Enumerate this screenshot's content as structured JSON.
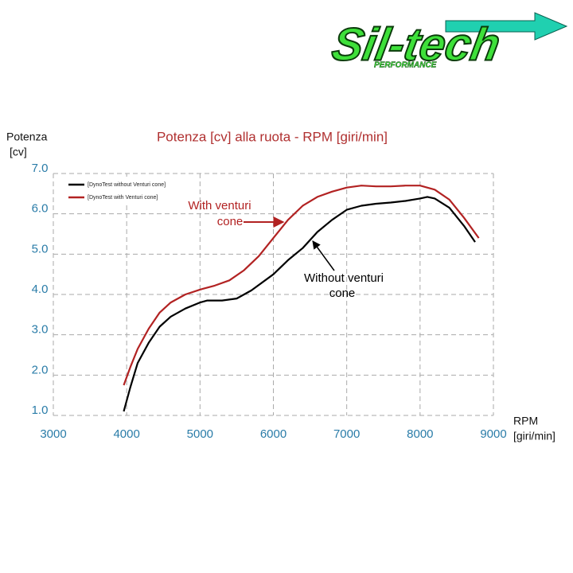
{
  "logo": {
    "text": "Sil-tech",
    "subtext": "PERFORMANCE"
  },
  "chart_data": {
    "type": "line",
    "title": "Potenza [cv] alla ruota - RPM [giri/min]",
    "y_label": [
      "Potenza",
      "[cv]"
    ],
    "x_label": [
      "RPM",
      "[giri/min]"
    ],
    "xlim": [
      3000,
      9000
    ],
    "xticks": [
      3000,
      4000,
      5000,
      6000,
      7000,
      8000,
      9000
    ],
    "ylim": [
      1,
      7
    ],
    "yticks": [
      {
        "value": 1,
        "label": "1.0"
      },
      {
        "value": 2,
        "label": "2.0"
      },
      {
        "value": 3,
        "label": "3.0"
      },
      {
        "value": 4,
        "label": "4.0"
      },
      {
        "value": 5,
        "label": "5.0"
      },
      {
        "value": 6,
        "label": "6.0"
      },
      {
        "value": 7,
        "label": "7.0"
      }
    ],
    "grid": true,
    "legend": "upper left",
    "series": [
      {
        "name": "[DynoTest without Venturi cone]",
        "color": "#000000",
        "x": [
          3960,
          4050,
          4150,
          4300,
          4450,
          4600,
          4800,
          5000,
          5100,
          5300,
          5500,
          5700,
          6000,
          6200,
          6400,
          6600,
          6800,
          7000,
          7200,
          7400,
          7600,
          7800,
          8000,
          8100,
          8200,
          8400,
          8600,
          8750
        ],
        "values": [
          1.1,
          1.7,
          2.3,
          2.8,
          3.2,
          3.45,
          3.65,
          3.8,
          3.85,
          3.85,
          3.9,
          4.1,
          4.5,
          4.85,
          5.15,
          5.55,
          5.85,
          6.1,
          6.2,
          6.25,
          6.28,
          6.32,
          6.38,
          6.42,
          6.38,
          6.15,
          5.7,
          5.3
        ]
      },
      {
        "name": "[DynoTest with Venturi cone]",
        "color": "#b22222",
        "x": [
          3960,
          4050,
          4150,
          4300,
          4450,
          4600,
          4800,
          5000,
          5200,
          5400,
          5600,
          5800,
          6000,
          6200,
          6400,
          6600,
          6800,
          7000,
          7200,
          7400,
          7600,
          7800,
          8000,
          8200,
          8400,
          8600,
          8800
        ],
        "values": [
          1.75,
          2.2,
          2.65,
          3.15,
          3.55,
          3.8,
          4.0,
          4.12,
          4.22,
          4.35,
          4.6,
          4.95,
          5.4,
          5.85,
          6.2,
          6.42,
          6.55,
          6.65,
          6.7,
          6.68,
          6.68,
          6.7,
          6.7,
          6.6,
          6.35,
          5.9,
          5.4
        ]
      }
    ],
    "annotations": [
      {
        "lines": [
          "With venturi",
          "cone"
        ],
        "color": "#b22222"
      },
      {
        "lines": [
          "Without venturi",
          "cone"
        ],
        "color": "#000000"
      }
    ]
  }
}
